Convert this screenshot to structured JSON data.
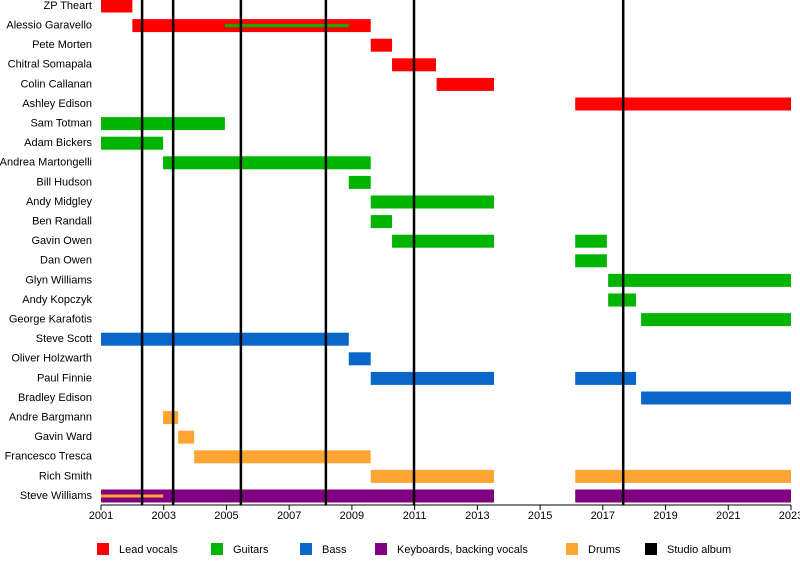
{
  "chart_data": {
    "type": "timeline",
    "xlim": [
      2001,
      2023
    ],
    "xticks": [
      2001,
      2003,
      2005,
      2007,
      2009,
      2011,
      2013,
      2015,
      2017,
      2019,
      2021,
      2023
    ],
    "rows": [
      {
        "name": "ZP Theart",
        "bars": [
          {
            "start": 2001,
            "end": 2002,
            "color": "#ff0000"
          }
        ]
      },
      {
        "name": "Alessio Garavello",
        "bars": [
          {
            "start": 2002,
            "end": 2009.6,
            "color": "#ff0000"
          },
          {
            "start": 2004.95,
            "end": 2008.9,
            "color": "#00b400",
            "thin": true
          }
        ]
      },
      {
        "name": "Pete Morten",
        "bars": [
          {
            "start": 2009.6,
            "end": 2010.28,
            "color": "#ff0000"
          }
        ]
      },
      {
        "name": "Chitral Somapala",
        "bars": [
          {
            "start": 2010.28,
            "end": 2011.68,
            "color": "#ff0000"
          }
        ]
      },
      {
        "name": "Colin Callanan",
        "bars": [
          {
            "start": 2011.7,
            "end": 2013.53,
            "color": "#ff0000"
          }
        ]
      },
      {
        "name": "Ashley Edison",
        "bars": [
          {
            "start": 2016.12,
            "end": 2023,
            "color": "#ff0000"
          }
        ]
      },
      {
        "name": "Sam Totman",
        "bars": [
          {
            "start": 2001,
            "end": 2004.95,
            "color": "#00b400"
          }
        ]
      },
      {
        "name": "Adam Bickers",
        "bars": [
          {
            "start": 2001,
            "end": 2002.98,
            "color": "#00b400"
          }
        ]
      },
      {
        "name": "Andrea Martongelli",
        "bars": [
          {
            "start": 2002.98,
            "end": 2009.6,
            "color": "#00b400"
          }
        ]
      },
      {
        "name": "Bill Hudson",
        "bars": [
          {
            "start": 2008.9,
            "end": 2009.6,
            "color": "#00b400"
          }
        ]
      },
      {
        "name": "Andy Midgley",
        "bars": [
          {
            "start": 2009.6,
            "end": 2013.53,
            "color": "#00b400"
          }
        ]
      },
      {
        "name": "Ben Randall",
        "bars": [
          {
            "start": 2009.6,
            "end": 2010.28,
            "color": "#00b400"
          }
        ]
      },
      {
        "name": "Gavin Owen",
        "bars": [
          {
            "start": 2010.28,
            "end": 2013.53,
            "color": "#00b400"
          },
          {
            "start": 2016.12,
            "end": 2017.13,
            "color": "#00b400"
          }
        ]
      },
      {
        "name": "Dan Owen",
        "bars": [
          {
            "start": 2016.12,
            "end": 2017.13,
            "color": "#00b400"
          }
        ]
      },
      {
        "name": "Glyn Williams",
        "bars": [
          {
            "start": 2017.17,
            "end": 2023,
            "color": "#00b400"
          }
        ]
      },
      {
        "name": "Andy Kopczyk",
        "bars": [
          {
            "start": 2017.17,
            "end": 2018.06,
            "color": "#00b400"
          }
        ]
      },
      {
        "name": "George Karafotis",
        "bars": [
          {
            "start": 2018.22,
            "end": 2023,
            "color": "#00b400"
          }
        ]
      },
      {
        "name": "Steve Scott",
        "bars": [
          {
            "start": 2001,
            "end": 2008.9,
            "color": "#0a66c8"
          }
        ]
      },
      {
        "name": "Oliver Holzwarth",
        "bars": [
          {
            "start": 2008.9,
            "end": 2009.6,
            "color": "#0a66c8"
          }
        ]
      },
      {
        "name": "Paul Finnie",
        "bars": [
          {
            "start": 2009.6,
            "end": 2013.53,
            "color": "#0a66c8"
          },
          {
            "start": 2016.12,
            "end": 2018.06,
            "color": "#0a66c8"
          }
        ]
      },
      {
        "name": "Bradley Edison",
        "bars": [
          {
            "start": 2018.22,
            "end": 2023,
            "color": "#0a66c8"
          }
        ]
      },
      {
        "name": "Andre Bargmann",
        "bars": [
          {
            "start": 2002.98,
            "end": 2003.46,
            "color": "#ffa533"
          }
        ]
      },
      {
        "name": "Gavin Ward",
        "bars": [
          {
            "start": 2003.46,
            "end": 2003.97,
            "color": "#ffa533"
          }
        ]
      },
      {
        "name": "Francesco Tresca",
        "bars": [
          {
            "start": 2003.97,
            "end": 2009.6,
            "color": "#ffa533"
          }
        ]
      },
      {
        "name": "Rich Smith",
        "bars": [
          {
            "start": 2009.6,
            "end": 2013.53,
            "color": "#ffa533"
          },
          {
            "start": 2016.12,
            "end": 2023,
            "color": "#ffa533"
          }
        ]
      },
      {
        "name": "Steve Williams",
        "bars": [
          {
            "start": 2001,
            "end": 2013.53,
            "color": "#800080"
          },
          {
            "start": 2016.12,
            "end": 2023,
            "color": "#800080"
          },
          {
            "start": 2001,
            "end": 2002.98,
            "color": "#ffa533",
            "thin": true
          }
        ]
      }
    ],
    "albums": [
      2002.31,
      2003.3,
      2005.46,
      2008.17,
      2010.98,
      2017.65
    ],
    "album_color": "#000000",
    "legend": [
      {
        "name": "Lead vocals",
        "color": "#ff0000"
      },
      {
        "name": "Guitars",
        "color": "#00b400"
      },
      {
        "name": "Bass",
        "color": "#0a66c8"
      },
      {
        "name": "Keyboards, backing vocals",
        "color": "#800080"
      },
      {
        "name": "Drums",
        "color": "#ffa533"
      },
      {
        "name": "Studio album",
        "color": "#000000"
      }
    ]
  }
}
